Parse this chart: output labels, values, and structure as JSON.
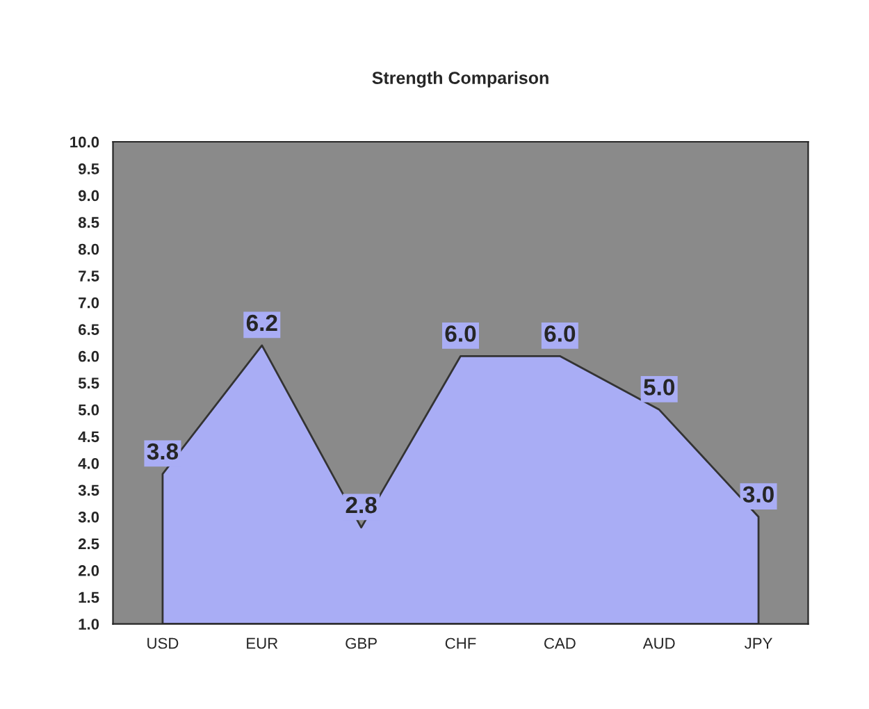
{
  "chart_data": {
    "type": "area",
    "title": "Strength Comparison",
    "categories": [
      "USD",
      "EUR",
      "GBP",
      "CHF",
      "CAD",
      "AUD",
      "JPY"
    ],
    "series": [
      {
        "color": "#a9adf5",
        "values": [
          3.8,
          6.2,
          2.8,
          6.0,
          6.0,
          5.0,
          3.0
        ],
        "value_labels": [
          "3.8",
          "6.2",
          "2.8",
          "6.0",
          "6.0",
          "5.0",
          "3.0"
        ]
      }
    ],
    "ylim": [
      1,
      10
    ],
    "yticks": [
      {
        "value": 1,
        "label": "1.0"
      },
      {
        "value": 1.5,
        "label": "1.5"
      },
      {
        "value": 2,
        "label": "2.0"
      },
      {
        "value": 2.5,
        "label": "2.5"
      },
      {
        "value": 3,
        "label": "3.0"
      },
      {
        "value": 3.5,
        "label": "3.5"
      },
      {
        "value": 4,
        "label": "4.0"
      },
      {
        "value": 4.5,
        "label": "4.5"
      },
      {
        "value": 5,
        "label": "5.0"
      },
      {
        "value": 5.5,
        "label": "5.5"
      },
      {
        "value": 6,
        "label": "6.0"
      },
      {
        "value": 6.5,
        "label": "6.5"
      },
      {
        "value": 7,
        "label": "7.0"
      },
      {
        "value": 7.5,
        "label": "7.5"
      },
      {
        "value": 8,
        "label": "8.0"
      },
      {
        "value": 8.5,
        "label": "8.5"
      },
      {
        "value": 9,
        "label": "9.0"
      },
      {
        "value": 9.5,
        "label": "9.5"
      },
      {
        "value": 10,
        "label": "10.0"
      }
    ],
    "grid": false
  }
}
